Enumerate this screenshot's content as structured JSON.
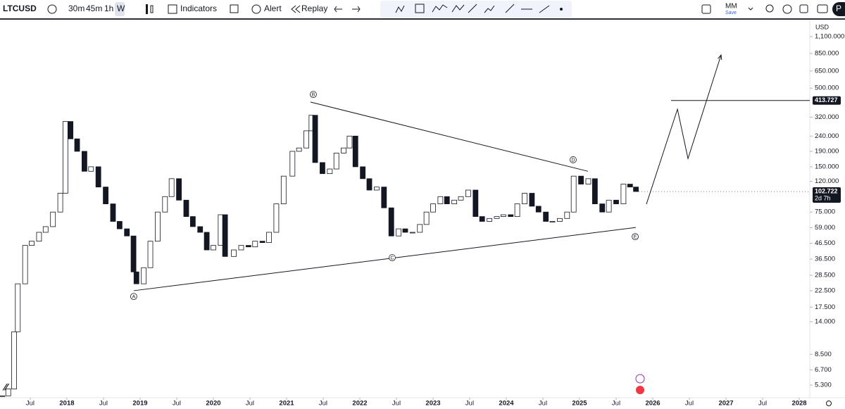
{
  "toolbar": {
    "symbol": "LTCUSD",
    "intervals": [
      "30m",
      "45m",
      "1h",
      "W"
    ],
    "indicators": "Indicators",
    "alert": "Alert",
    "replay": "Replay",
    "layout": "MM",
    "save": "Save",
    "publish": "P"
  },
  "chart_data": {
    "type": "candlestick",
    "currency": "USD",
    "log": true,
    "x": [
      2017.12,
      2017.2,
      2017.28,
      2017.33,
      2017.43,
      2017.52,
      2017.62,
      2017.71,
      2017.81,
      2017.91,
      2017.98,
      2018.05,
      2018.14,
      2018.24,
      2018.33,
      2018.43,
      2018.53,
      2018.63,
      2018.72,
      2018.82,
      2018.91,
      2018.95,
      2019.05,
      2019.14,
      2019.24,
      2019.34,
      2019.43,
      2019.53,
      2019.63,
      2019.72,
      2019.82,
      2019.91,
      2020.0,
      2020.1,
      2020.16,
      2020.28,
      2020.38,
      2020.48,
      2020.57,
      2020.67,
      2020.76,
      2020.86,
      2020.96,
      2021.08,
      2021.17,
      2021.27,
      2021.34,
      2021.39,
      2021.49,
      2021.59,
      2021.68,
      2021.78,
      2021.86,
      2021.94,
      2022.04,
      2022.13,
      2022.23,
      2022.33,
      2022.43,
      2022.53,
      2022.62,
      2022.72,
      2022.82,
      2022.91,
      2023.0,
      2023.1,
      2023.19,
      2023.29,
      2023.38,
      2023.48,
      2023.58,
      2023.67,
      2023.77,
      2023.87,
      2023.96,
      2024.06,
      2024.15,
      2024.25,
      2024.35,
      2024.44,
      2024.54,
      2024.63,
      2024.73,
      2024.83,
      2024.92,
      2025.02,
      2025.12,
      2025.21,
      2025.31,
      2025.4,
      2025.5,
      2025.6,
      2025.69,
      2025.77
    ],
    "values": [
      4.5,
      5,
      12,
      25,
      45,
      48,
      55,
      60,
      75,
      100,
      300,
      230,
      190,
      140,
      150,
      110,
      85,
      65,
      58,
      52,
      30,
      25,
      32,
      48,
      75,
      95,
      125,
      90,
      70,
      60,
      55,
      42,
      45,
      72,
      38,
      42,
      45,
      44,
      48,
      47,
      55,
      85,
      130,
      190,
      200,
      260,
      330,
      160,
      135,
      145,
      185,
      200,
      240,
      150,
      125,
      105,
      110,
      80,
      52,
      58,
      55,
      55,
      62,
      75,
      85,
      95,
      85,
      90,
      95,
      105,
      70,
      65,
      68,
      70,
      72,
      70,
      85,
      100,
      82,
      75,
      65,
      65,
      68,
      75,
      130,
      115,
      125,
      85,
      75,
      90,
      85,
      115,
      110,
      102.722
    ],
    "xlim": [
      2017.087,
      2028.144
    ],
    "ylim": [
      4.37,
      1425
    ],
    "xticks": [
      {
        "value": 2017.5,
        "label": "Jul"
      },
      2018,
      {
        "value": 2018.5,
        "label": "Jul"
      },
      2019,
      {
        "value": 2019.5,
        "label": "Jul"
      },
      2020,
      {
        "value": 2020.5,
        "label": "Jul"
      },
      2021,
      {
        "value": 2021.5,
        "label": "Jul"
      },
      2022,
      {
        "value": 2022.5,
        "label": "Jul"
      },
      2023,
      {
        "value": 2023.5,
        "label": "Jul"
      },
      2024,
      {
        "value": 2024.5,
        "label": "Jul"
      },
      2025,
      {
        "value": 2025.5,
        "label": "Jul"
      },
      2026,
      {
        "value": 2026.5,
        "label": "Jul"
      },
      2027,
      {
        "value": 2027.5,
        "label": "Jul"
      },
      2028
    ],
    "yticks": [
      {
        "value": 1100,
        "label": "1,100.000"
      },
      {
        "value": 850,
        "label": "850.000"
      },
      {
        "value": 650,
        "label": "650.000"
      },
      {
        "value": 500,
        "label": "500.000"
      },
      {
        "value": 320,
        "label": "320.000"
      },
      {
        "value": 240,
        "label": "240.000"
      },
      {
        "value": 190,
        "label": "190.000"
      },
      {
        "value": 150,
        "label": "150.000"
      },
      {
        "value": 120,
        "label": "120.000"
      },
      {
        "value": 75,
        "label": "75.000"
      },
      {
        "value": 59,
        "label": "59.000"
      },
      {
        "value": 46.5,
        "label": "46.500"
      },
      {
        "value": 36.5,
        "label": "36.500"
      },
      {
        "value": 28.5,
        "label": "28.500"
      },
      {
        "value": 22.5,
        "label": "22.500"
      },
      {
        "value": 17.5,
        "label": "17.500"
      },
      {
        "value": 14,
        "label": "14.000"
      },
      {
        "value": 8.5,
        "label": "8.500"
      },
      {
        "value": 6.7,
        "label": "6.700"
      },
      {
        "value": 5.3,
        "label": "5.300"
      }
    ],
    "price_label": {
      "value": 102.722,
      "label": "102.722"
    },
    "countdown": "2d 7h",
    "horizontal_line": {
      "value": 413.727,
      "label": "413.727",
      "from_x": 2026.25
    },
    "trendlines": [
      [
        [
          2018.913,
          22.5
        ],
        [
          2025.769,
          59.2
        ]
      ],
      [
        [
          2021.327,
          404
        ],
        [
          2025.115,
          140
        ]
      ]
    ],
    "projection": [
      [
        2025.913,
        84.6
      ],
      [
        2026.337,
        362
      ],
      [
        2026.481,
        170
      ],
      [
        2026.933,
        831
      ]
    ],
    "wave_labels": [
      {
        "text": "A",
        "at": [
          2018.913,
          20.6
        ]
      },
      {
        "text": "B",
        "at": [
          2021.365,
          454
        ]
      },
      {
        "text": "C",
        "at": [
          2022.442,
          37.3
        ]
      },
      {
        "text": "D",
        "at": [
          2024.913,
          167
        ]
      },
      {
        "text": "E",
        "at": [
          2025.76,
          51.5
        ]
      }
    ]
  }
}
